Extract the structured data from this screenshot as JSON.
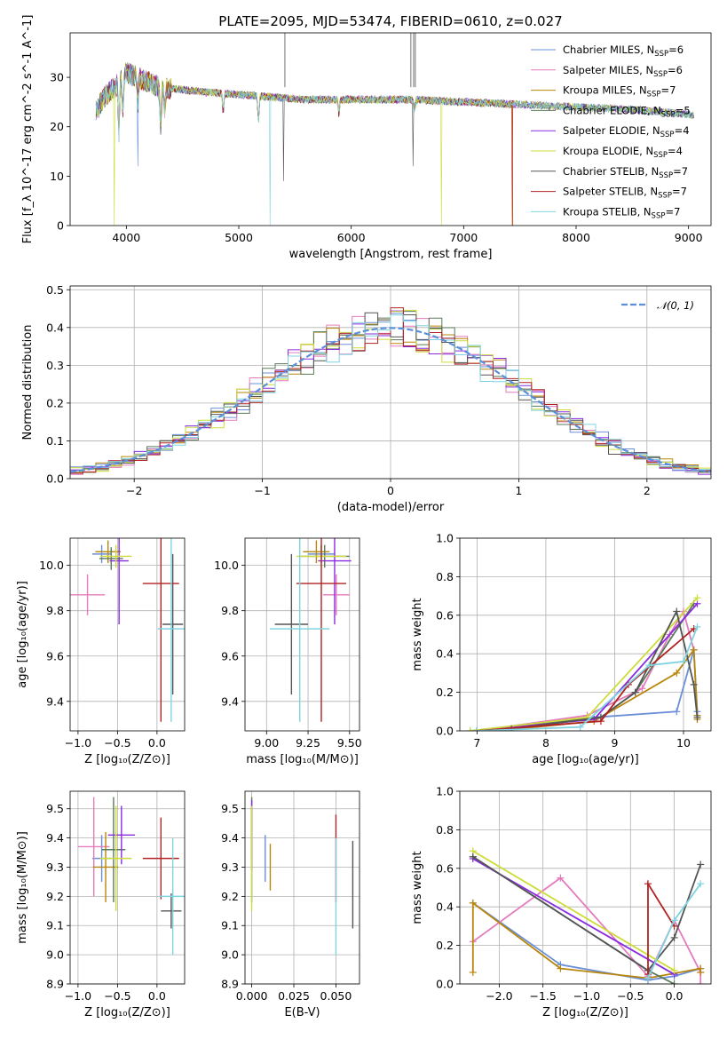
{
  "figure": {
    "title": "PLATE=2095, MJD=53474, FIBERID=0610, z=0.027",
    "colors": [
      "#6a8fd8",
      "#e47bbd",
      "#b8860b",
      "#5a7a5a",
      "#8a2be2",
      "#cddc39",
      "#555555",
      "#b22222",
      "#7fd3e0"
    ],
    "model_names": [
      "Chabrier MILES, N_SSP=6",
      "Salpeter MILES, N_SSP=6",
      "Kroupa MILES, N_SSP=7",
      "Chabrier ELODIE, N_SSP=5",
      "Salpeter ELODIE, N_SSP=4",
      "Kroupa ELODIE, N_SSP=4",
      "Chabrier STELIB, N_SSP=7",
      "Salpeter STELIB, N_SSP=7",
      "Kroupa STELIB, N_SSP=7"
    ]
  },
  "chart_data": [
    {
      "id": "spectrum",
      "type": "line",
      "xlabel": "wavelength [Angstrom, rest frame]",
      "ylabel": "Flux [f_λ 10^-17 erg cm^-2 s^-1 A^-1]",
      "xlim": [
        3500,
        9200
      ],
      "ylim": [
        0,
        39
      ],
      "xticks": [
        4000,
        5000,
        6000,
        7000,
        8000,
        9000
      ],
      "yticks": [
        0,
        10,
        20,
        30
      ],
      "legend_position": "upper right",
      "legend": [
        "Chabrier MILES, N_SSP=6",
        "Salpeter MILES, N_SSP=6",
        "Kroupa MILES, N_SSP=7",
        "Chabrier ELODIE, N_SSP=5",
        "Salpeter ELODIE, N_SSP=4",
        "Kroupa ELODIE, N_SSP=4",
        "Chabrier STELIB, N_SSP=7",
        "Salpeter STELIB, N_SSP=7",
        "Kroupa STELIB, N_SSP=7"
      ],
      "continuum": {
        "x": [
          3730,
          3800,
          3900,
          4000,
          4100,
          4200,
          4300,
          4500,
          4700,
          5000,
          5300,
          5600,
          6000,
          6500,
          7000,
          7500,
          8000,
          8500,
          9000,
          9050
        ],
        "y": [
          23,
          26,
          28,
          31,
          30,
          29,
          28,
          27.5,
          27,
          26.5,
          26,
          25.5,
          25.5,
          25.5,
          25,
          24.5,
          24,
          23.5,
          22.5,
          22.3
        ]
      }
    },
    {
      "id": "residuals",
      "type": "histogram",
      "xlabel": "(data-model)/error",
      "ylabel": "Normed distribution",
      "xlim": [
        -2.5,
        2.5
      ],
      "ylim": [
        0,
        0.51
      ],
      "xticks": [
        -2,
        -1,
        0,
        1,
        2
      ],
      "yticks": [
        0.0,
        0.1,
        0.2,
        0.3,
        0.4,
        0.5
      ],
      "legend": [
        "𝒩(0, 1)"
      ],
      "legend_position": "upper right",
      "reference_curve": "normal(0,1)"
    },
    {
      "id": "age_vs_Z",
      "type": "scatter",
      "xlabel": "Z [log₁₀(Z/Z⊙)]",
      "ylabel": "age  [log₁₀(age/yr)]",
      "xlim": [
        -1.1,
        0.35
      ],
      "ylim": [
        9.27,
        10.12
      ],
      "xticks": [
        -1.0,
        -0.5,
        0.0
      ],
      "yticks": [
        9.4,
        9.6,
        9.8,
        10.0
      ],
      "points": [
        {
          "x": -0.7,
          "y": 10.05,
          "xerr": 0.12,
          "yerr": 0.04,
          "c": 0
        },
        {
          "x": -0.88,
          "y": 9.87,
          "xerr": 0.22,
          "yerr": 0.09,
          "c": 1
        },
        {
          "x": -0.62,
          "y": 10.06,
          "xerr": 0.16,
          "yerr": 0.05,
          "c": 2
        },
        {
          "x": -0.58,
          "y": 10.03,
          "xerr": 0.15,
          "yerr": 0.05,
          "c": 3
        },
        {
          "x": -0.48,
          "y": 10.02,
          "xerr": 0.12,
          "yerr": 0.28,
          "c": 4
        },
        {
          "x": -0.52,
          "y": 10.04,
          "xerr": 0.2,
          "yerr": 0.05,
          "c": 5
        },
        {
          "x": 0.2,
          "y": 9.74,
          "xerr": 0.13,
          "yerr": 0.31,
          "c": 6
        },
        {
          "x": 0.05,
          "y": 9.92,
          "xerr": 0.23,
          "yerr": 0.61,
          "c": 7
        },
        {
          "x": 0.18,
          "y": 9.72,
          "xerr": 0.17,
          "yerr": 0.41,
          "c": 8
        }
      ]
    },
    {
      "id": "age_vs_mass",
      "type": "scatter",
      "xlabel": "mass [log₁₀(M/M⊙)]",
      "ylabel": "",
      "xlim": [
        8.87,
        9.56
      ],
      "ylim": [
        9.27,
        10.12
      ],
      "xticks": [
        9.0,
        9.25,
        9.5
      ],
      "yticks": [
        9.4,
        9.6,
        9.8,
        10.0
      ],
      "points": [
        {
          "x": 9.33,
          "y": 10.05,
          "xerr": 0.08,
          "yerr": 0.04,
          "c": 0
        },
        {
          "x": 9.42,
          "y": 9.87,
          "xerr": 0.08,
          "yerr": 0.09,
          "c": 1
        },
        {
          "x": 9.3,
          "y": 10.06,
          "xerr": 0.08,
          "yerr": 0.05,
          "c": 2
        },
        {
          "x": 9.35,
          "y": 10.04,
          "xerr": 0.15,
          "yerr": 0.05,
          "c": 3
        },
        {
          "x": 9.41,
          "y": 10.02,
          "xerr": 0.1,
          "yerr": 0.28,
          "c": 4
        },
        {
          "x": 9.33,
          "y": 10.04,
          "xerr": 0.15,
          "yerr": 0.05,
          "c": 5
        },
        {
          "x": 9.15,
          "y": 9.74,
          "xerr": 0.1,
          "yerr": 0.31,
          "c": 6
        },
        {
          "x": 9.33,
          "y": 9.92,
          "xerr": 0.15,
          "yerr": 0.61,
          "c": 7
        },
        {
          "x": 9.2,
          "y": 9.72,
          "xerr": 0.18,
          "yerr": 0.41,
          "c": 8
        }
      ]
    },
    {
      "id": "massweight_vs_age",
      "type": "line",
      "xlabel": "age  [log₁₀(age/yr)]",
      "ylabel": "mass weight",
      "xlim": [
        6.75,
        10.4
      ],
      "ylim": [
        0,
        1.0
      ],
      "xticks": [
        7,
        8,
        9,
        10
      ],
      "yticks": [
        0.0,
        0.2,
        0.4,
        0.6,
        0.8,
        1.0
      ],
      "series": [
        {
          "c": 0,
          "x": [
            6.9,
            8.7,
            9.9,
            10.15,
            10.2,
            10.2
          ],
          "y": [
            0.0,
            0.07,
            0.1,
            0.42,
            0.1,
            0.08
          ]
        },
        {
          "c": 1,
          "x": [
            7.0,
            8.6,
            9.4,
            9.8,
            10.0,
            10.15
          ],
          "y": [
            0.0,
            0.08,
            0.22,
            0.5,
            0.62,
            0.42
          ]
        },
        {
          "c": 2,
          "x": [
            7.3,
            8.7,
            9.9,
            10.15,
            10.2,
            10.2
          ],
          "y": [
            0.0,
            0.05,
            0.3,
            0.42,
            0.08,
            0.06
          ]
        },
        {
          "c": 3,
          "x": [
            7.0,
            8.8,
            9.3,
            10.15
          ],
          "y": [
            0.0,
            0.07,
            0.2,
            0.66
          ]
        },
        {
          "c": 4,
          "x": [
            7.0,
            8.7,
            10.2
          ],
          "y": [
            0.0,
            0.06,
            0.66
          ]
        },
        {
          "c": 5,
          "x": [
            6.9,
            8.6,
            10.2
          ],
          "y": [
            0.0,
            0.07,
            0.69
          ]
        },
        {
          "c": 6,
          "x": [
            7.5,
            8.8,
            9.3,
            9.9,
            10.15,
            10.2
          ],
          "y": [
            0.01,
            0.07,
            0.2,
            0.62,
            0.24,
            0.07
          ]
        },
        {
          "c": 7,
          "x": [
            7.0,
            8.8,
            9.2,
            10.15
          ],
          "y": [
            0.0,
            0.05,
            0.24,
            0.53
          ]
        },
        {
          "c": 8,
          "x": [
            7.0,
            8.5,
            9.5,
            10.0,
            10.2
          ],
          "y": [
            0.0,
            0.02,
            0.34,
            0.36,
            0.54
          ]
        }
      ]
    },
    {
      "id": "mass_vs_Z",
      "type": "scatter",
      "xlabel": "Z [log₁₀(Z/Z⊙)]",
      "ylabel": "mass [log₁₀(M/M⊙)]",
      "xlim": [
        -1.1,
        0.35
      ],
      "ylim": [
        8.9,
        9.56
      ],
      "xticks": [
        -1.0,
        -0.5,
        0.0
      ],
      "yticks": [
        8.9,
        9.0,
        9.1,
        9.2,
        9.3,
        9.4,
        9.5
      ],
      "points": [
        {
          "x": -0.7,
          "y": 9.33,
          "xerr": 0.12,
          "yerr": 0.08,
          "c": 0
        },
        {
          "x": -0.8,
          "y": 9.37,
          "xerr": 0.2,
          "yerr": 0.17,
          "c": 1
        },
        {
          "x": -0.65,
          "y": 9.3,
          "xerr": 0.16,
          "yerr": 0.12,
          "c": 2
        },
        {
          "x": -0.55,
          "y": 9.36,
          "xerr": 0.15,
          "yerr": 0.18,
          "c": 3
        },
        {
          "x": -0.45,
          "y": 9.41,
          "xerr": 0.17,
          "yerr": 0.1,
          "c": 4
        },
        {
          "x": -0.52,
          "y": 9.33,
          "xerr": 0.2,
          "yerr": 0.18,
          "c": 5
        },
        {
          "x": 0.18,
          "y": 9.15,
          "xerr": 0.13,
          "yerr": 0.06,
          "c": 6
        },
        {
          "x": 0.05,
          "y": 9.33,
          "xerr": 0.23,
          "yerr": 0.14,
          "c": 7
        },
        {
          "x": 0.2,
          "y": 9.2,
          "xerr": 0.17,
          "yerr": 0.2,
          "c": 8
        }
      ]
    },
    {
      "id": "mass_vs_EBV",
      "type": "scatter",
      "xlabel": "E(B-V)",
      "ylabel": "",
      "xlim": [
        -0.004,
        0.064
      ],
      "ylim": [
        8.9,
        9.56
      ],
      "xticks": [
        0.0,
        0.025,
        0.05
      ],
      "yticks": [
        8.9,
        9.0,
        9.1,
        9.2,
        9.3,
        9.4,
        9.5
      ],
      "points": [
        {
          "x": 0.008,
          "y": 9.33,
          "xerr": 0.0,
          "yerr": 0.08,
          "c": 0
        },
        {
          "x": 0.0,
          "y": 9.42,
          "xerr": 0.0,
          "yerr": 0.1,
          "c": 1
        },
        {
          "x": 0.011,
          "y": 9.3,
          "xerr": 0.0,
          "yerr": 0.08,
          "c": 2
        },
        {
          "x": 0.0,
          "y": 9.36,
          "xerr": 0.0,
          "yerr": 0.18,
          "c": 3
        },
        {
          "x": 0.0,
          "y": 9.41,
          "xerr": 0.0,
          "yerr": 0.12,
          "c": 4
        },
        {
          "x": 0.0,
          "y": 9.33,
          "xerr": 0.0,
          "yerr": 0.18,
          "c": 5
        },
        {
          "x": 0.06,
          "y": 9.24,
          "xerr": 0.0,
          "yerr": 0.15,
          "c": 6
        },
        {
          "x": 0.05,
          "y": 9.33,
          "xerr": 0.0,
          "yerr": 0.15,
          "c": 7
        },
        {
          "x": 0.05,
          "y": 9.2,
          "xerr": 0.0,
          "yerr": 0.2,
          "c": 8
        }
      ]
    },
    {
      "id": "massweight_vs_Z",
      "type": "line",
      "xlabel": "Z [log₁₀(Z/Z⊙)]",
      "ylabel": "mass weight",
      "xlim": [
        -2.45,
        0.42
      ],
      "ylim": [
        0,
        1.0
      ],
      "xticks": [
        -2.0,
        -1.5,
        -1.0,
        -0.5,
        0.0
      ],
      "yticks": [
        0.0,
        0.2,
        0.4,
        0.6,
        0.8,
        1.0
      ],
      "series": [
        {
          "c": 0,
          "x": [
            -2.3,
            -1.3,
            -0.3,
            0.0,
            0.3
          ],
          "y": [
            0.42,
            0.1,
            0.02,
            0.04,
            0.08
          ]
        },
        {
          "c": 1,
          "x": [
            -2.3,
            -1.3,
            -0.3,
            0.0,
            0.3,
            0.3
          ],
          "y": [
            0.22,
            0.55,
            0.04,
            0.33,
            0.06,
            0.0
          ]
        },
        {
          "c": 2,
          "x": [
            -2.3,
            -2.3,
            -1.3,
            -0.3,
            0.3,
            0.3
          ],
          "y": [
            0.06,
            0.42,
            0.08,
            0.03,
            0.08,
            0.06
          ]
        },
        {
          "c": 3,
          "x": [
            -2.3,
            -0.3,
            0.0
          ],
          "y": [
            0.66,
            0.07,
            0.0
          ]
        },
        {
          "c": 4,
          "x": [
            -2.3,
            0.0
          ],
          "y": [
            0.65,
            0.05
          ]
        },
        {
          "c": 5,
          "x": [
            -2.3,
            0.0
          ],
          "y": [
            0.69,
            0.07
          ]
        },
        {
          "c": 6,
          "x": [
            -2.3,
            -0.3,
            0.0,
            0.3
          ],
          "y": [
            0.66,
            0.07,
            0.24,
            0.62
          ]
        },
        {
          "c": 7,
          "x": [
            -0.3,
            -0.3,
            0.0
          ],
          "y": [
            0.05,
            0.52,
            0.3
          ]
        },
        {
          "c": 8,
          "x": [
            -0.3,
            0.0,
            0.3
          ],
          "y": [
            0.03,
            0.33,
            0.52
          ]
        }
      ]
    }
  ]
}
